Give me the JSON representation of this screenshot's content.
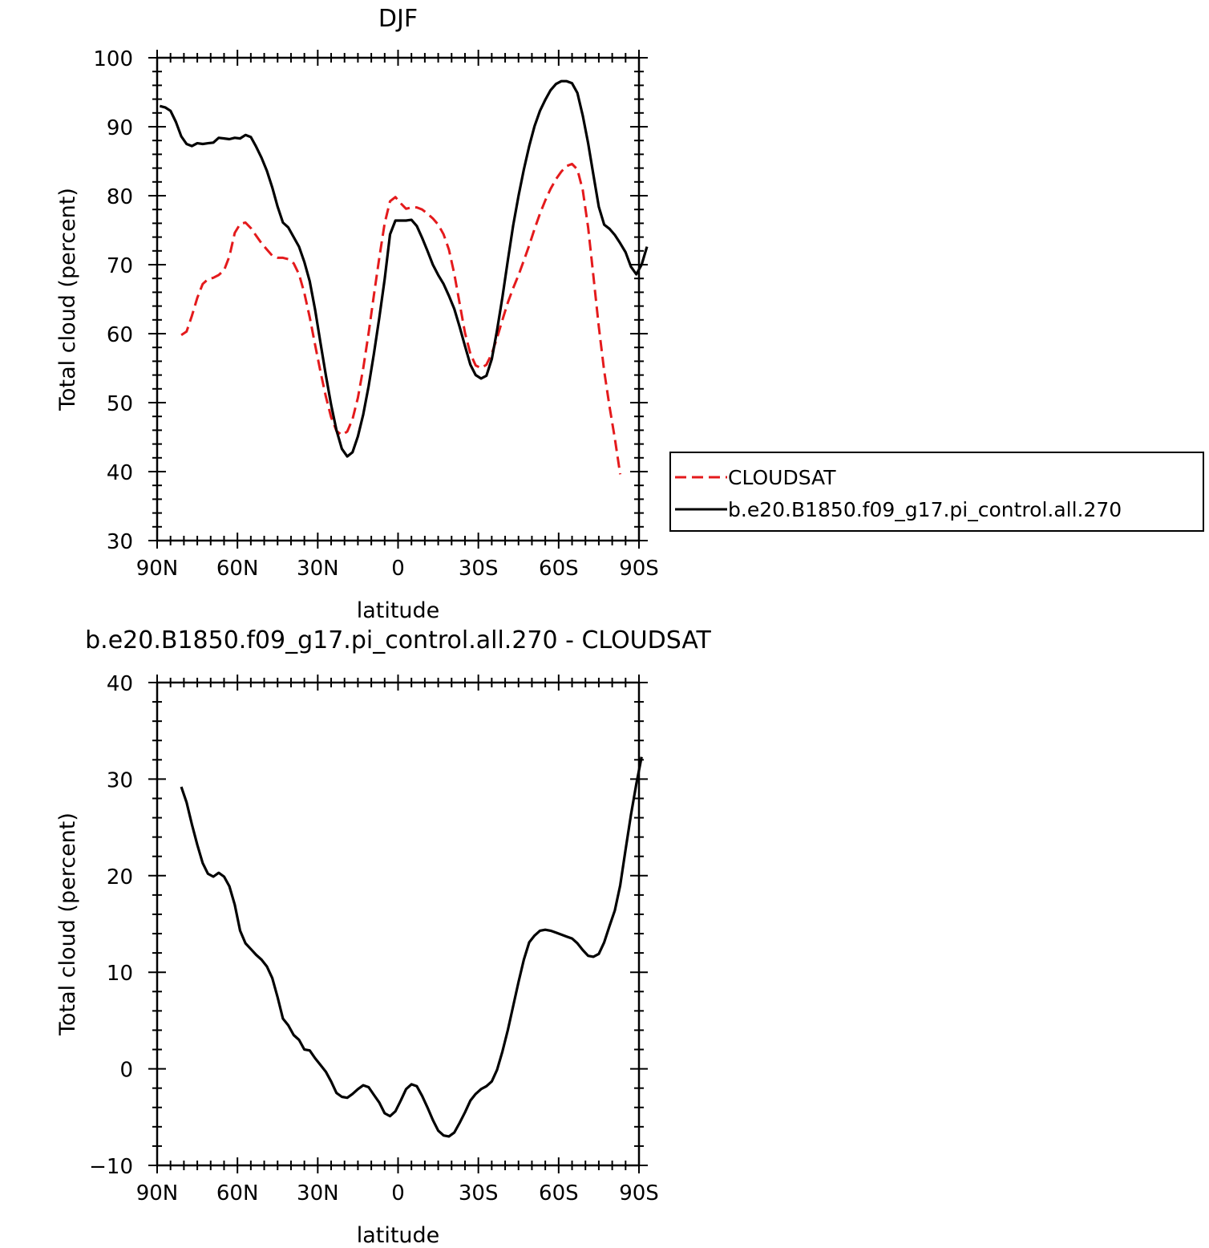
{
  "chart_data": [
    {
      "type": "line",
      "title": "DJF",
      "xlabel": "latitude",
      "ylabel": "Total cloud (percent)",
      "xlim": [
        90,
        -90
      ],
      "ylim": [
        30,
        100
      ],
      "x_ticks": [
        {
          "value": 90,
          "label": "90N"
        },
        {
          "value": 60,
          "label": "60N"
        },
        {
          "value": 30,
          "label": "30N"
        },
        {
          "value": 0,
          "label": "0"
        },
        {
          "value": -30,
          "label": "30S"
        },
        {
          "value": -60,
          "label": "60S"
        },
        {
          "value": -90,
          "label": "90S"
        }
      ],
      "y_ticks": [
        30,
        40,
        50,
        60,
        70,
        80,
        90,
        100
      ],
      "legend_position": "right",
      "series": [
        {
          "name": "CLOUDSAT",
          "color": "#e41a1c",
          "dash": "dashed",
          "points": [
            [
              81,
              59.8
            ],
            [
              79,
              60.3
            ],
            [
              77,
              62.6
            ],
            [
              75,
              65.2
            ],
            [
              73,
              67.2
            ],
            [
              71,
              67.9
            ],
            [
              69,
              68.1
            ],
            [
              67,
              68.5
            ],
            [
              65,
              69.2
            ],
            [
              63,
              71.2
            ],
            [
              61,
              74.6
            ],
            [
              59,
              75.9
            ],
            [
              57,
              76.1
            ],
            [
              55,
              75.3
            ],
            [
              53,
              74.2
            ],
            [
              51,
              73.1
            ],
            [
              49,
              72.2
            ],
            [
              47,
              71.3
            ],
            [
              45,
              71.0
            ],
            [
              43,
              71.0
            ],
            [
              41,
              70.8
            ],
            [
              39,
              70.2
            ],
            [
              37,
              68.6
            ],
            [
              35,
              65.9
            ],
            [
              33,
              62.4
            ],
            [
              31,
              58.4
            ],
            [
              29,
              54.5
            ],
            [
              27,
              50.9
            ],
            [
              25,
              47.9
            ],
            [
              23,
              45.9
            ],
            [
              21,
              45.3
            ],
            [
              19,
              45.8
            ],
            [
              17,
              47.6
            ],
            [
              15,
              50.7
            ],
            [
              13,
              55.0
            ],
            [
              11,
              60.1
            ],
            [
              9,
              65.6
            ],
            [
              7,
              71.0
            ],
            [
              5,
              76.0
            ],
            [
              3,
              79.2
            ],
            [
              1,
              79.8
            ],
            [
              -1,
              78.9
            ],
            [
              -3,
              78.1
            ],
            [
              -5,
              78.3
            ],
            [
              -7,
              78.3
            ],
            [
              -9,
              78.0
            ],
            [
              -11,
              77.4
            ],
            [
              -13,
              76.7
            ],
            [
              -15,
              75.8
            ],
            [
              -17,
              74.4
            ],
            [
              -19,
              72.2
            ],
            [
              -21,
              68.7
            ],
            [
              -23,
              64.4
            ],
            [
              -25,
              60.1
            ],
            [
              -27,
              57.1
            ],
            [
              -29,
              55.4
            ],
            [
              -31,
              55.0
            ],
            [
              -33,
              55.5
            ],
            [
              -35,
              57.1
            ],
            [
              -37,
              59.4
            ],
            [
              -39,
              62.0
            ],
            [
              -41,
              64.5
            ],
            [
              -43,
              66.6
            ],
            [
              -45,
              68.5
            ],
            [
              -47,
              70.6
            ],
            [
              -49,
              72.8
            ],
            [
              -51,
              75.2
            ],
            [
              -53,
              77.4
            ],
            [
              -55,
              79.3
            ],
            [
              -57,
              81.0
            ],
            [
              -59,
              82.4
            ],
            [
              -61,
              83.5
            ],
            [
              -63,
              84.3
            ],
            [
              -65,
              84.6
            ],
            [
              -67,
              83.8
            ],
            [
              -69,
              80.8
            ],
            [
              -71,
              75.4
            ],
            [
              -73,
              68.3
            ],
            [
              -75,
              61.0
            ],
            [
              -77,
              54.6
            ],
            [
              -79,
              49.4
            ],
            [
              -81,
              44.8
            ],
            [
              -83,
              39.6
            ]
          ]
        },
        {
          "name": "b.e20.B1850.f09_g17.pi_control.all.270",
          "color": "#000000",
          "dash": "solid",
          "points": [
            [
              89,
              93.0
            ],
            [
              87,
              92.8
            ],
            [
              85,
              92.3
            ],
            [
              83,
              90.7
            ],
            [
              81,
              88.6
            ],
            [
              79,
              87.5
            ],
            [
              77,
              87.2
            ],
            [
              75,
              87.6
            ],
            [
              73,
              87.5
            ],
            [
              71,
              87.6
            ],
            [
              69,
              87.7
            ],
            [
              67,
              88.4
            ],
            [
              65,
              88.3
            ],
            [
              63,
              88.2
            ],
            [
              61,
              88.4
            ],
            [
              59,
              88.3
            ],
            [
              57,
              88.8
            ],
            [
              55,
              88.5
            ],
            [
              53,
              87.1
            ],
            [
              51,
              85.5
            ],
            [
              49,
              83.6
            ],
            [
              47,
              81.2
            ],
            [
              45,
              78.4
            ],
            [
              43,
              76.1
            ],
            [
              41,
              75.4
            ],
            [
              39,
              74.0
            ],
            [
              37,
              72.6
            ],
            [
              35,
              70.4
            ],
            [
              33,
              67.6
            ],
            [
              31,
              63.5
            ],
            [
              29,
              58.7
            ],
            [
              27,
              54.0
            ],
            [
              25,
              49.7
            ],
            [
              23,
              46.0
            ],
            [
              21,
              43.3
            ],
            [
              19,
              42.2
            ],
            [
              17,
              42.8
            ],
            [
              15,
              45.1
            ],
            [
              13,
              48.3
            ],
            [
              11,
              52.4
            ],
            [
              9,
              57.1
            ],
            [
              7,
              62.3
            ],
            [
              5,
              67.9
            ],
            [
              3,
              74.4
            ],
            [
              1,
              76.4
            ],
            [
              -1,
              76.4
            ],
            [
              -3,
              76.4
            ],
            [
              -5,
              76.5
            ],
            [
              -7,
              75.6
            ],
            [
              -9,
              73.9
            ],
            [
              -11,
              72.0
            ],
            [
              -13,
              70.0
            ],
            [
              -15,
              68.5
            ],
            [
              -17,
              67.2
            ],
            [
              -19,
              65.5
            ],
            [
              -21,
              63.6
            ],
            [
              -23,
              61.0
            ],
            [
              -25,
              58.2
            ],
            [
              -27,
              55.5
            ],
            [
              -29,
              54.0
            ],
            [
              -31,
              53.5
            ],
            [
              -33,
              53.9
            ],
            [
              -35,
              56.3
            ],
            [
              -37,
              60.5
            ],
            [
              -39,
              65.3
            ],
            [
              -41,
              70.6
            ],
            [
              -43,
              75.7
            ],
            [
              -45,
              80.0
            ],
            [
              -47,
              83.8
            ],
            [
              -49,
              87.2
            ],
            [
              -51,
              90.1
            ],
            [
              -53,
              92.3
            ],
            [
              -55,
              93.9
            ],
            [
              -57,
              95.3
            ],
            [
              -59,
              96.2
            ],
            [
              -61,
              96.6
            ],
            [
              -63,
              96.6
            ],
            [
              -65,
              96.3
            ],
            [
              -67,
              94.9
            ],
            [
              -69,
              91.6
            ],
            [
              -71,
              87.6
            ],
            [
              -73,
              83.0
            ],
            [
              -75,
              78.4
            ],
            [
              -77,
              75.8
            ],
            [
              -79,
              75.2
            ],
            [
              -81,
              74.3
            ],
            [
              -83,
              73.1
            ],
            [
              -85,
              71.8
            ],
            [
              -87,
              69.7
            ],
            [
              -89,
              68.6
            ],
            [
              -91,
              70.0
            ],
            [
              -93,
              72.6
            ]
          ]
        }
      ]
    },
    {
      "type": "line",
      "title": "b.e20.B1850.f09_g17.pi_control.all.270 - CLOUDSAT",
      "xlabel": "latitude",
      "ylabel": "Total cloud (percent)",
      "xlim": [
        90,
        -90
      ],
      "ylim": [
        -10,
        40
      ],
      "x_ticks": [
        {
          "value": 90,
          "label": "90N"
        },
        {
          "value": 60,
          "label": "60N"
        },
        {
          "value": 30,
          "label": "30N"
        },
        {
          "value": 0,
          "label": "0"
        },
        {
          "value": -30,
          "label": "30S"
        },
        {
          "value": -60,
          "label": "60S"
        },
        {
          "value": -90,
          "label": "90S"
        }
      ],
      "y_ticks": [
        -10,
        0,
        10,
        20,
        30,
        40
      ],
      "series": [
        {
          "color": "#000000",
          "dash": "solid",
          "points": [
            [
              81,
              29.2
            ],
            [
              79,
              27.6
            ],
            [
              77,
              25.3
            ],
            [
              75,
              23.2
            ],
            [
              73,
              21.3
            ],
            [
              71,
              20.2
            ],
            [
              69,
              19.9
            ],
            [
              67,
              20.3
            ],
            [
              65,
              19.9
            ],
            [
              63,
              18.9
            ],
            [
              61,
              17.0
            ],
            [
              59,
              14.3
            ],
            [
              57,
              13.0
            ],
            [
              55,
              12.4
            ],
            [
              53,
              11.8
            ],
            [
              51,
              11.3
            ],
            [
              49,
              10.6
            ],
            [
              47,
              9.4
            ],
            [
              45,
              7.4
            ],
            [
              43,
              5.2
            ],
            [
              41,
              4.5
            ],
            [
              39,
              3.5
            ],
            [
              37,
              3.0
            ],
            [
              35,
              2.0
            ],
            [
              33,
              1.9
            ],
            [
              31,
              1.1
            ],
            [
              29,
              0.4
            ],
            [
              27,
              -0.3
            ],
            [
              25,
              -1.3
            ],
            [
              23,
              -2.5
            ],
            [
              21,
              -2.9
            ],
            [
              19,
              -3.0
            ],
            [
              17,
              -2.6
            ],
            [
              15,
              -2.1
            ],
            [
              13,
              -1.7
            ],
            [
              11,
              -1.9
            ],
            [
              9,
              -2.7
            ],
            [
              7,
              -3.5
            ],
            [
              5,
              -4.6
            ],
            [
              3,
              -4.9
            ],
            [
              1,
              -4.4
            ],
            [
              -1,
              -3.3
            ],
            [
              -3,
              -2.1
            ],
            [
              -5,
              -1.6
            ],
            [
              -7,
              -1.8
            ],
            [
              -9,
              -2.8
            ],
            [
              -11,
              -4.0
            ],
            [
              -13,
              -5.3
            ],
            [
              -15,
              -6.4
            ],
            [
              -17,
              -6.9
            ],
            [
              -19,
              -7.0
            ],
            [
              -21,
              -6.6
            ],
            [
              -23,
              -5.6
            ],
            [
              -25,
              -4.5
            ],
            [
              -27,
              -3.3
            ],
            [
              -29,
              -2.6
            ],
            [
              -31,
              -2.1
            ],
            [
              -33,
              -1.8
            ],
            [
              -35,
              -1.3
            ],
            [
              -37,
              -0.1
            ],
            [
              -39,
              1.8
            ],
            [
              -41,
              4.0
            ],
            [
              -43,
              6.5
            ],
            [
              -45,
              9.0
            ],
            [
              -47,
              11.3
            ],
            [
              -49,
              13.1
            ],
            [
              -51,
              13.8
            ],
            [
              -53,
              14.3
            ],
            [
              -55,
              14.4
            ],
            [
              -57,
              14.3
            ],
            [
              -59,
              14.1
            ],
            [
              -61,
              13.9
            ],
            [
              -63,
              13.7
            ],
            [
              -65,
              13.5
            ],
            [
              -67,
              13.0
            ],
            [
              -69,
              12.3
            ],
            [
              -71,
              11.7
            ],
            [
              -73,
              11.6
            ],
            [
              -75,
              11.9
            ],
            [
              -77,
              13.1
            ],
            [
              -79,
              14.8
            ],
            [
              -81,
              16.4
            ],
            [
              -83,
              19.0
            ],
            [
              -85,
              22.7
            ],
            [
              -87,
              26.3
            ],
            [
              -89,
              29.5
            ],
            [
              -91,
              32.3
            ]
          ]
        }
      ]
    }
  ]
}
